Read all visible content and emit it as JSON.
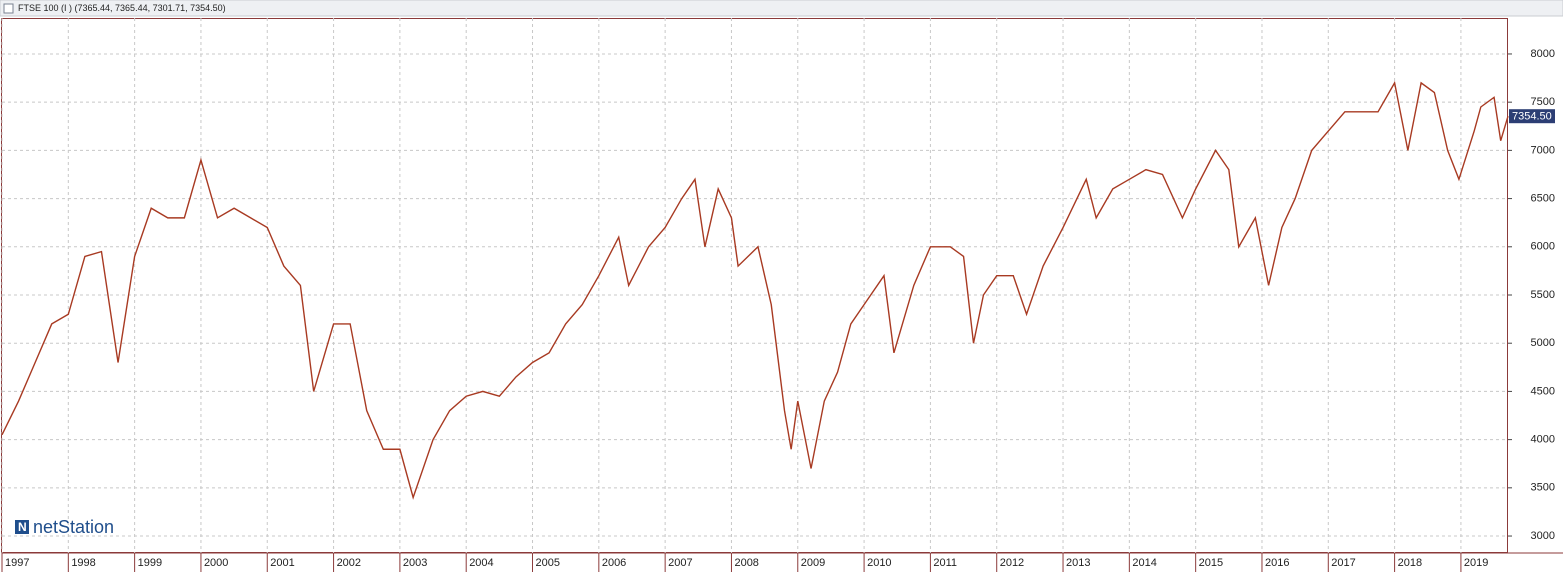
{
  "chart_data": {
    "type": "line",
    "header": "FTSE 100 (I ) (7365.44, 7365.44, 7301.71, 7354.50)",
    "watermark": "netStation",
    "x": [
      1997.0,
      1997.25,
      1997.5,
      1997.75,
      1998.0,
      1998.25,
      1998.5,
      1998.75,
      1999.0,
      1999.25,
      1999.5,
      1999.75,
      2000.0,
      2000.25,
      2000.5,
      2000.75,
      2001.0,
      2001.25,
      2001.5,
      2001.7,
      2002.0,
      2002.25,
      2002.5,
      2002.75,
      2003.0,
      2003.2,
      2003.5,
      2003.75,
      2004.0,
      2004.25,
      2004.5,
      2004.75,
      2005.0,
      2005.25,
      2005.5,
      2005.75,
      2006.0,
      2006.3,
      2006.45,
      2006.75,
      2007.0,
      2007.25,
      2007.45,
      2007.6,
      2007.8,
      2008.0,
      2008.1,
      2008.4,
      2008.6,
      2008.8,
      2008.9,
      2009.0,
      2009.2,
      2009.4,
      2009.6,
      2009.8,
      2010.0,
      2010.3,
      2010.45,
      2010.75,
      2011.0,
      2011.3,
      2011.5,
      2011.65,
      2011.8,
      2012.0,
      2012.25,
      2012.45,
      2012.7,
      2013.0,
      2013.35,
      2013.5,
      2013.75,
      2014.0,
      2014.25,
      2014.5,
      2014.8,
      2015.0,
      2015.3,
      2015.5,
      2015.65,
      2015.9,
      2016.1,
      2016.3,
      2016.5,
      2016.75,
      2017.0,
      2017.25,
      2017.5,
      2017.75,
      2018.0,
      2018.2,
      2018.4,
      2018.6,
      2018.8,
      2018.97,
      2019.2,
      2019.3,
      2019.5,
      2019.6,
      2019.71
    ],
    "series": [
      {
        "name": "FTSE 100",
        "color": "#a83a22",
        "values": [
          4050,
          4400,
          4800,
          5200,
          5300,
          5900,
          5950,
          4800,
          5900,
          6400,
          6300,
          6300,
          6900,
          6300,
          6400,
          6300,
          6200,
          5800,
          5600,
          4500,
          5200,
          5200,
          4300,
          3900,
          3900,
          3400,
          4000,
          4300,
          4450,
          4500,
          4450,
          4650,
          4800,
          4900,
          5200,
          5400,
          5700,
          6100,
          5600,
          6000,
          6200,
          6500,
          6700,
          6000,
          6600,
          6300,
          5800,
          6000,
          5400,
          4300,
          3900,
          4400,
          3700,
          4400,
          4700,
          5200,
          5400,
          5700,
          4900,
          5600,
          6000,
          6000,
          5900,
          5000,
          5500,
          5700,
          5700,
          5300,
          5800,
          6200,
          6700,
          6300,
          6600,
          6700,
          6800,
          6750,
          6300,
          6600,
          7000,
          6800,
          6000,
          6300,
          5600,
          6200,
          6500,
          7000,
          7200,
          7400,
          7400,
          7400,
          7700,
          7000,
          7700,
          7600,
          7000,
          6700,
          7200,
          7450,
          7550,
          7100,
          7354.5
        ]
      }
    ],
    "current_value": {
      "value": 7354.5,
      "label": "7354.50"
    },
    "xlim": [
      1997,
      2019.71
    ],
    "xticks": [
      1997,
      1998,
      1999,
      2000,
      2001,
      2002,
      2003,
      2004,
      2005,
      2006,
      2007,
      2008,
      2009,
      2010,
      2011,
      2012,
      2013,
      2014,
      2015,
      2016,
      2017,
      2018,
      2019
    ],
    "ylim": [
      2824,
      8373
    ],
    "yticks": [
      3000,
      3500,
      4000,
      4500,
      5000,
      5500,
      6000,
      6500,
      7000,
      7500,
      8000
    ],
    "grid": true
  }
}
